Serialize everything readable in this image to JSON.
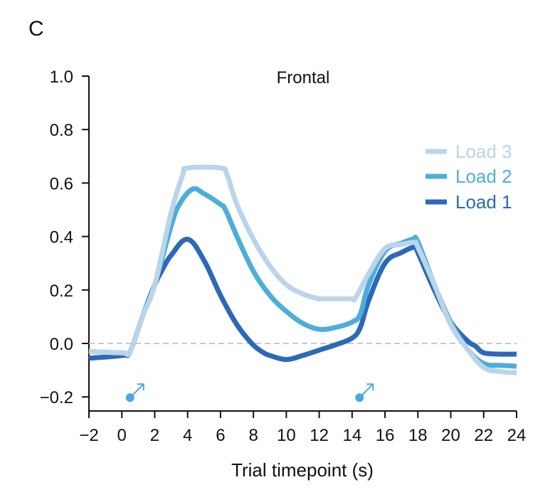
{
  "panel_label": "C",
  "chart_data": {
    "type": "line",
    "title": "Frontal",
    "xlabel": "Trial timepoint (s)",
    "ylabel": "",
    "xlim": [
      -2,
      24
    ],
    "ylim": [
      -0.25,
      1.0
    ],
    "xticks": [
      -2,
      0,
      2,
      4,
      6,
      8,
      10,
      12,
      14,
      16,
      18,
      20,
      22,
      24
    ],
    "xtick_labels": [
      "−2",
      "0",
      "2",
      "4",
      "6",
      "8",
      "10",
      "12",
      "14",
      "16",
      "18",
      "20",
      "22",
      "24"
    ],
    "yticks": [
      -0.2,
      0.0,
      0.2,
      0.4,
      0.6,
      0.8,
      1.0
    ],
    "ytick_labels": [
      "−0.2",
      "0.0",
      "0.2",
      "0.4",
      "0.6",
      "0.8",
      "1.0"
    ],
    "grid": false,
    "reference_line": {
      "y": 0.0,
      "style": "dashed",
      "color": "#c8c8d2"
    },
    "legend_position": "right",
    "series": [
      {
        "name": "Load 3",
        "color": "#bad5e9",
        "x": [
          -2,
          0,
          0.5,
          1.25,
          2,
          3,
          3.7,
          4,
          6,
          6.4,
          7,
          8,
          9,
          10,
          11,
          11.9,
          12,
          13,
          14,
          14.2,
          15,
          16,
          17,
          17.8,
          18,
          19,
          20,
          21,
          22,
          23,
          24
        ],
        "y": [
          -0.03,
          -0.035,
          -0.03,
          0.1,
          0.22,
          0.49,
          0.63,
          0.656,
          0.656,
          0.63,
          0.52,
          0.39,
          0.29,
          0.22,
          0.185,
          0.168,
          0.167,
          0.167,
          0.167,
          0.17,
          0.26,
          0.355,
          0.37,
          0.378,
          0.36,
          0.22,
          0.07,
          -0.02,
          -0.09,
          -0.105,
          -0.11
        ]
      },
      {
        "name": "Load 2",
        "color": "#4daed8",
        "x": [
          -2,
          0,
          0.5,
          1.25,
          2,
          3,
          3.5,
          4.3,
          5,
          6,
          6.3,
          7,
          8,
          9,
          10,
          11,
          12,
          13,
          14,
          14.5,
          15,
          16,
          17,
          17.7,
          18,
          19,
          20,
          21,
          22,
          23,
          24
        ],
        "y": [
          -0.03,
          -0.035,
          -0.03,
          0.1,
          0.22,
          0.44,
          0.52,
          0.577,
          0.56,
          0.52,
          0.5,
          0.4,
          0.27,
          0.18,
          0.12,
          0.075,
          0.053,
          0.06,
          0.08,
          0.11,
          0.22,
          0.345,
          0.375,
          0.39,
          0.38,
          0.22,
          0.08,
          -0.02,
          -0.075,
          -0.082,
          -0.085
        ]
      },
      {
        "name": "Load 1",
        "color": "#2c69b8",
        "x": [
          -2,
          0,
          0.5,
          1.25,
          2,
          2.5,
          3,
          4,
          5,
          6,
          7,
          7.9,
          8.5,
          9,
          10,
          11,
          12,
          13,
          14,
          14.5,
          15,
          16,
          17,
          17.8,
          18,
          19,
          20,
          21,
          21.5,
          22,
          23,
          24
        ],
        "y": [
          -0.055,
          -0.045,
          -0.03,
          0.1,
          0.22,
          0.28,
          0.33,
          0.39,
          0.31,
          0.18,
          0.07,
          0.0,
          -0.03,
          -0.045,
          -0.06,
          -0.045,
          -0.025,
          -0.005,
          0.02,
          0.06,
          0.16,
          0.3,
          0.34,
          0.36,
          0.34,
          0.2,
          0.08,
          0.01,
          -0.01,
          -0.035,
          -0.04,
          -0.04
        ]
      }
    ],
    "annotations": [
      {
        "type": "marker",
        "symbol": "circle-arrow",
        "x": 0.5,
        "y": -0.2,
        "color": "#4ba8e0"
      },
      {
        "type": "marker",
        "symbol": "circle-arrow",
        "x": 14.45,
        "y": -0.2,
        "color": "#4ba8e0"
      }
    ]
  }
}
